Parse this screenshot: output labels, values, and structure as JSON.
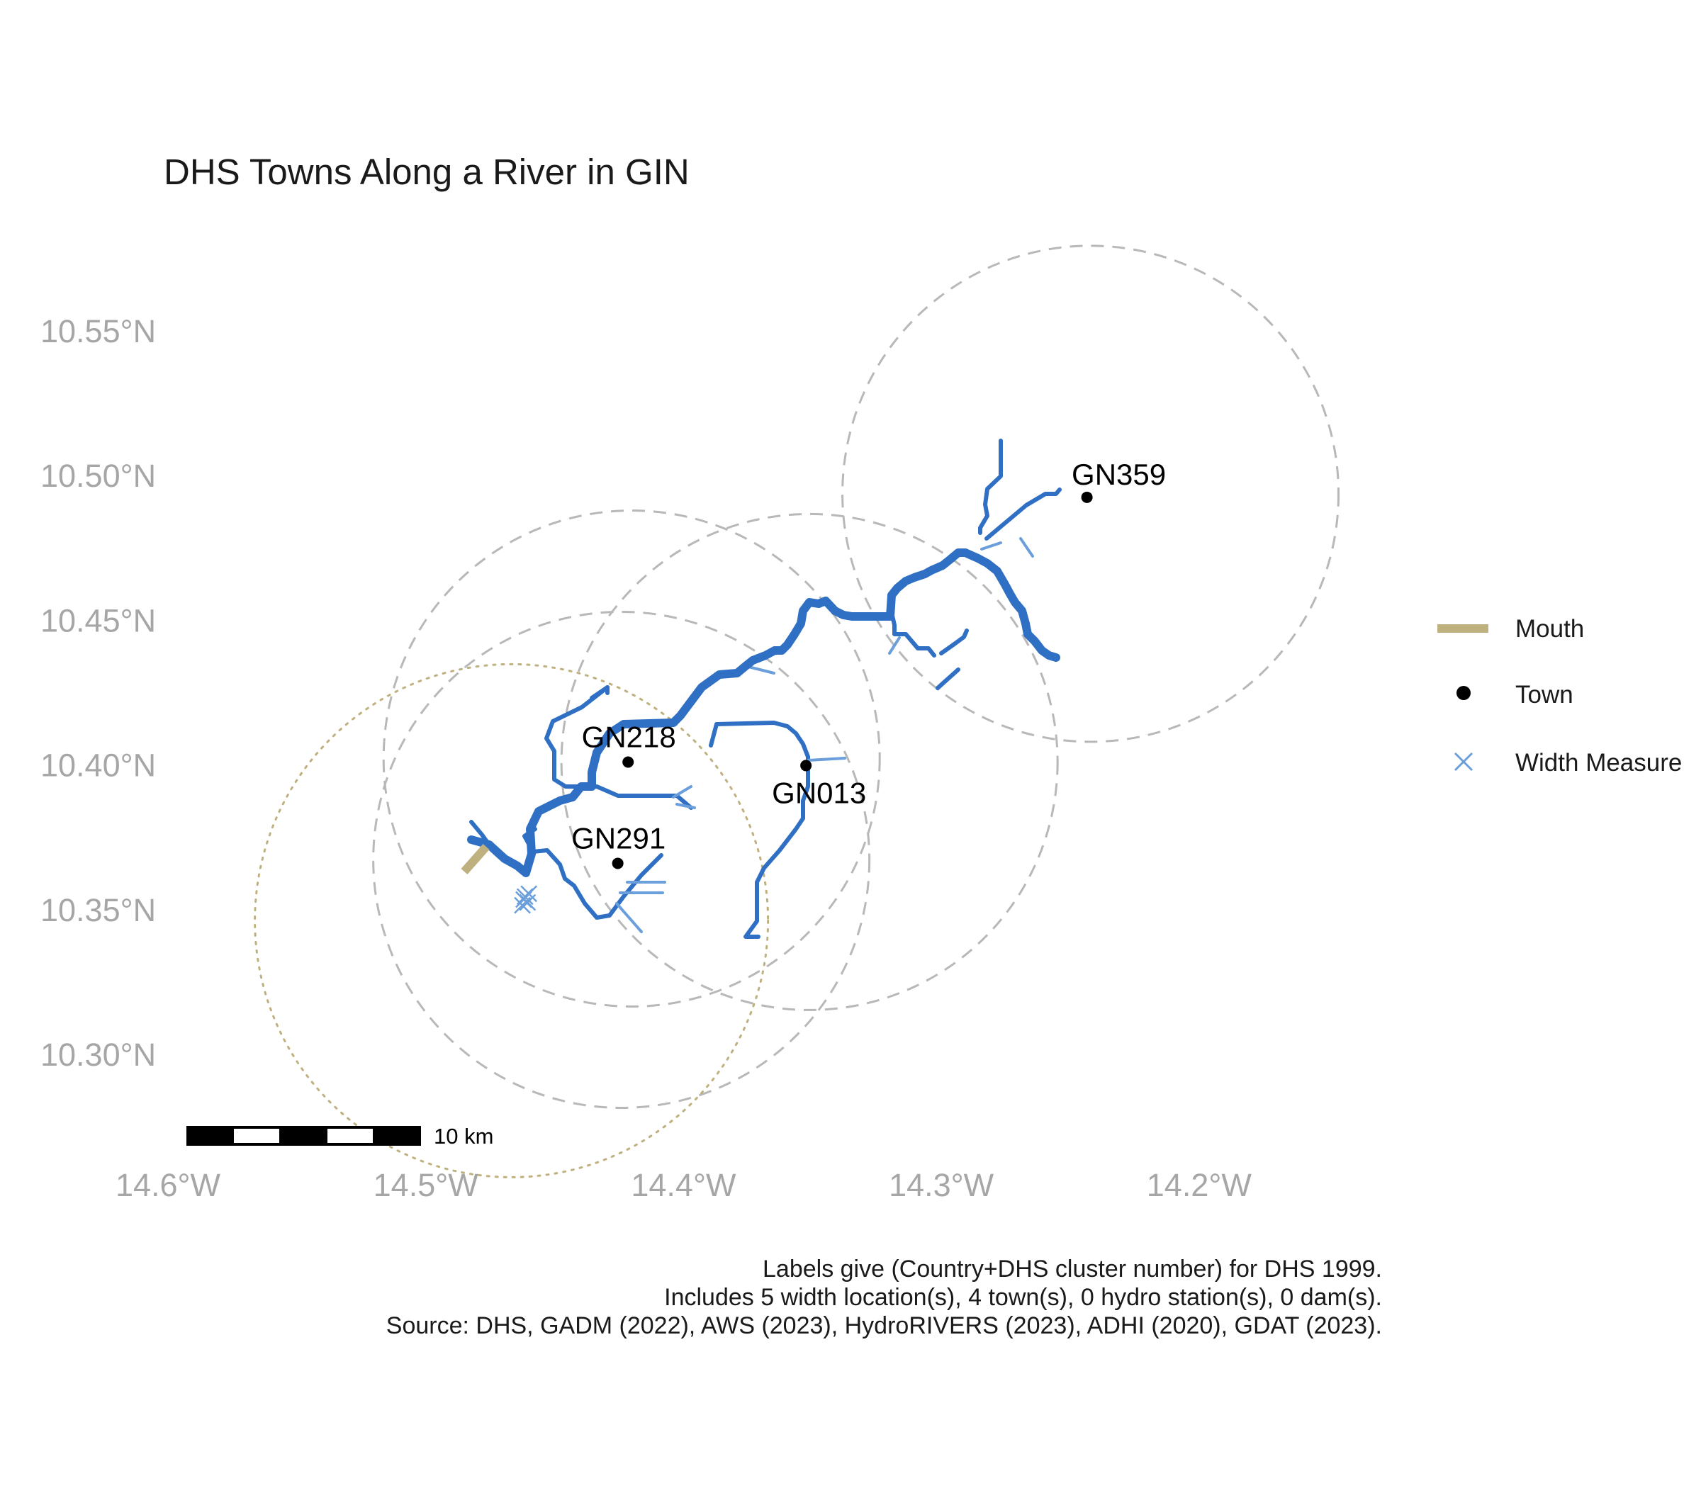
{
  "title": "DHS Towns Along a River in GIN",
  "axes": {
    "x_ticks": [
      {
        "value": -14.6,
        "label": "14.6°W"
      },
      {
        "value": -14.5,
        "label": "14.5°W"
      },
      {
        "value": -14.4,
        "label": "14.4°W"
      },
      {
        "value": -14.3,
        "label": "14.3°W"
      },
      {
        "value": -14.2,
        "label": "14.2°W"
      }
    ],
    "y_ticks": [
      {
        "value": 10.55,
        "label": "10.55°N"
      },
      {
        "value": 10.5,
        "label": "10.50°N"
      },
      {
        "value": 10.45,
        "label": "10.45°N"
      },
      {
        "value": 10.4,
        "label": "10.40°N"
      },
      {
        "value": 10.35,
        "label": "10.35°N"
      },
      {
        "value": 10.3,
        "label": "10.30°N"
      }
    ],
    "grid": false
  },
  "towns": [
    {
      "id": "GN359",
      "lon": -14.2435,
      "lat": 10.4925
    },
    {
      "id": "GN218",
      "lon": -14.4215,
      "lat": 10.401
    },
    {
      "id": "GN013",
      "lon": -14.3525,
      "lat": 10.3998
    },
    {
      "id": "GN291",
      "lon": -14.4255,
      "lat": 10.366
    }
  ],
  "buffers": {
    "town_buffer_style": "dashed gray circle",
    "mouth_buffer_style": "dotted tan circle"
  },
  "mouth": {
    "lon": -14.475,
    "lat": 10.367
  },
  "width_measures": [
    {
      "lon": -14.4615,
      "lat": 10.3545
    },
    {
      "lon": -14.4605,
      "lat": 10.3525
    },
    {
      "lon": -14.4625,
      "lat": 10.3515
    },
    {
      "lon": -14.46,
      "lat": 10.3555
    },
    {
      "lon": -14.462,
      "lat": 10.3535
    }
  ],
  "legend": {
    "placement": "right",
    "items": [
      {
        "label": "Mouth",
        "color": "#bfb07f",
        "symbol": "line"
      },
      {
        "label": "Town",
        "color": "#000000",
        "symbol": "point"
      },
      {
        "label": "Width Measure",
        "color": "#6a9fdb",
        "symbol": "cross"
      }
    ]
  },
  "scale_bar": {
    "label": "10 km"
  },
  "caption": [
    "Labels give (Country+DHS cluster number) for DHS 1999.",
    "Includes 5 width location(s), 4 town(s), 0 hydro station(s), 0 dam(s).",
    "Source: DHS, GADM (2022), AWS (2023), HydroRIVERS (2023), ADHI (2020), GDAT (2023)."
  ],
  "colors": {
    "river": "#2f6fc4",
    "tributary": "#6a9fdb",
    "buffer": "#b8b8b8",
    "mouth": "#bfb07f",
    "town": "#000000"
  },
  "chart_data": {
    "type": "map",
    "title": "DHS Towns Along a River in GIN",
    "xlim": [
      -14.6,
      -14.16
    ],
    "ylim": [
      10.275,
      10.59
    ],
    "points": [
      {
        "name": "GN359",
        "x": -14.2435,
        "y": 10.4925
      },
      {
        "name": "GN218",
        "x": -14.4215,
        "y": 10.401
      },
      {
        "name": "GN013",
        "x": -14.3525,
        "y": 10.3998
      },
      {
        "name": "GN291",
        "x": -14.4255,
        "y": 10.366
      }
    ]
  }
}
